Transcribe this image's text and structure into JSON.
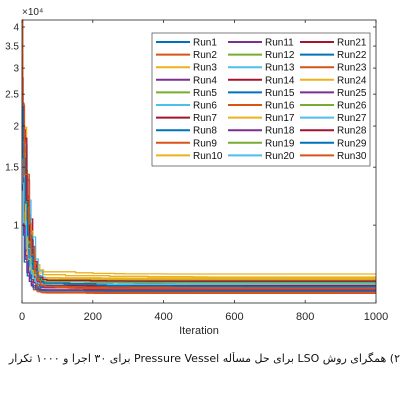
{
  "chart_data": {
    "type": "line",
    "title": "",
    "xlabel": "Iteration",
    "ylabel": "",
    "y_exponent_label": "×10⁴",
    "y_scale": "log",
    "xlim": [
      0,
      1000
    ],
    "ylim": [
      5800,
      42000
    ],
    "x_ticks": [
      0,
      200,
      400,
      600,
      800,
      1000
    ],
    "y_ticks": [
      {
        "value": 10000,
        "label": "1"
      },
      {
        "value": 15000,
        "label": "1.5"
      },
      {
        "value": 20000,
        "label": "2"
      },
      {
        "value": 25000,
        "label": "2.5"
      },
      {
        "value": 30000,
        "label": "3"
      },
      {
        "value": 35000,
        "label": "3.5"
      },
      {
        "value": 40000,
        "label": "4"
      }
    ],
    "grid": false,
    "legend_position": "top-right",
    "series": [
      {
        "name": "Run1",
        "color": "#0072BD",
        "start": 40000,
        "final": 6400
      },
      {
        "name": "Run2",
        "color": "#D95319",
        "start": 32000,
        "final": 6500
      },
      {
        "name": "Run3",
        "color": "#EDB120",
        "start": 27000,
        "final": 6900
      },
      {
        "name": "Run4",
        "color": "#7E2F8E",
        "start": 24000,
        "final": 6600
      },
      {
        "name": "Run5",
        "color": "#77AC30",
        "start": 26000,
        "final": 6200
      },
      {
        "name": "Run6",
        "color": "#4DBEEE",
        "start": 22000,
        "final": 6700
      },
      {
        "name": "Run7",
        "color": "#A2142F",
        "start": 30000,
        "final": 6300
      },
      {
        "name": "Run8",
        "color": "#0072BD",
        "start": 21000,
        "final": 6450
      },
      {
        "name": "Run9",
        "color": "#D95319",
        "start": 25000,
        "final": 6250
      },
      {
        "name": "Run10",
        "color": "#EDB120",
        "start": 36000,
        "final": 7100
      },
      {
        "name": "Run11",
        "color": "#7E2F8E",
        "start": 20000,
        "final": 6550
      },
      {
        "name": "Run12",
        "color": "#77AC30",
        "start": 23000,
        "final": 6350
      },
      {
        "name": "Run13",
        "color": "#4DBEEE",
        "start": 19000,
        "final": 6750
      },
      {
        "name": "Run14",
        "color": "#A2142F",
        "start": 28000,
        "final": 6500
      },
      {
        "name": "Run15",
        "color": "#0072BD",
        "start": 22500,
        "final": 6600
      },
      {
        "name": "Run16",
        "color": "#D95319",
        "start": 24500,
        "final": 6200
      },
      {
        "name": "Run17",
        "color": "#EDB120",
        "start": 26500,
        "final": 6950
      },
      {
        "name": "Run18",
        "color": "#7E2F8E",
        "start": 21500,
        "final": 6400
      },
      {
        "name": "Run19",
        "color": "#77AC30",
        "start": 20500,
        "final": 6800
      },
      {
        "name": "Run20",
        "color": "#4DBEEE",
        "start": 29000,
        "final": 6650
      },
      {
        "name": "Run21",
        "color": "#A2142F",
        "start": 23500,
        "final": 6550
      },
      {
        "name": "Run22",
        "color": "#0072BD",
        "start": 25500,
        "final": 6300
      },
      {
        "name": "Run23",
        "color": "#D95319",
        "start": 20000,
        "final": 6450
      },
      {
        "name": "Run24",
        "color": "#EDB120",
        "start": 31000,
        "final": 6850
      },
      {
        "name": "Run25",
        "color": "#7E2F8E",
        "start": 22000,
        "final": 6350
      },
      {
        "name": "Run26",
        "color": "#77AC30",
        "start": 27500,
        "final": 6700
      },
      {
        "name": "Run27",
        "color": "#4DBEEE",
        "start": 19500,
        "final": 6600
      },
      {
        "name": "Run28",
        "color": "#A2142F",
        "start": 33000,
        "final": 6750
      },
      {
        "name": "Run29",
        "color": "#0072BD",
        "start": 24000,
        "final": 6500
      },
      {
        "name": "Run30",
        "color": "#D95319",
        "start": 42000,
        "final": 6400
      }
    ]
  },
  "caption": "۲) همگرای روش LSO برای حل مسأله Pressure Vessel برای ۳۰ اجرا و ۱۰۰۰ تکرار"
}
